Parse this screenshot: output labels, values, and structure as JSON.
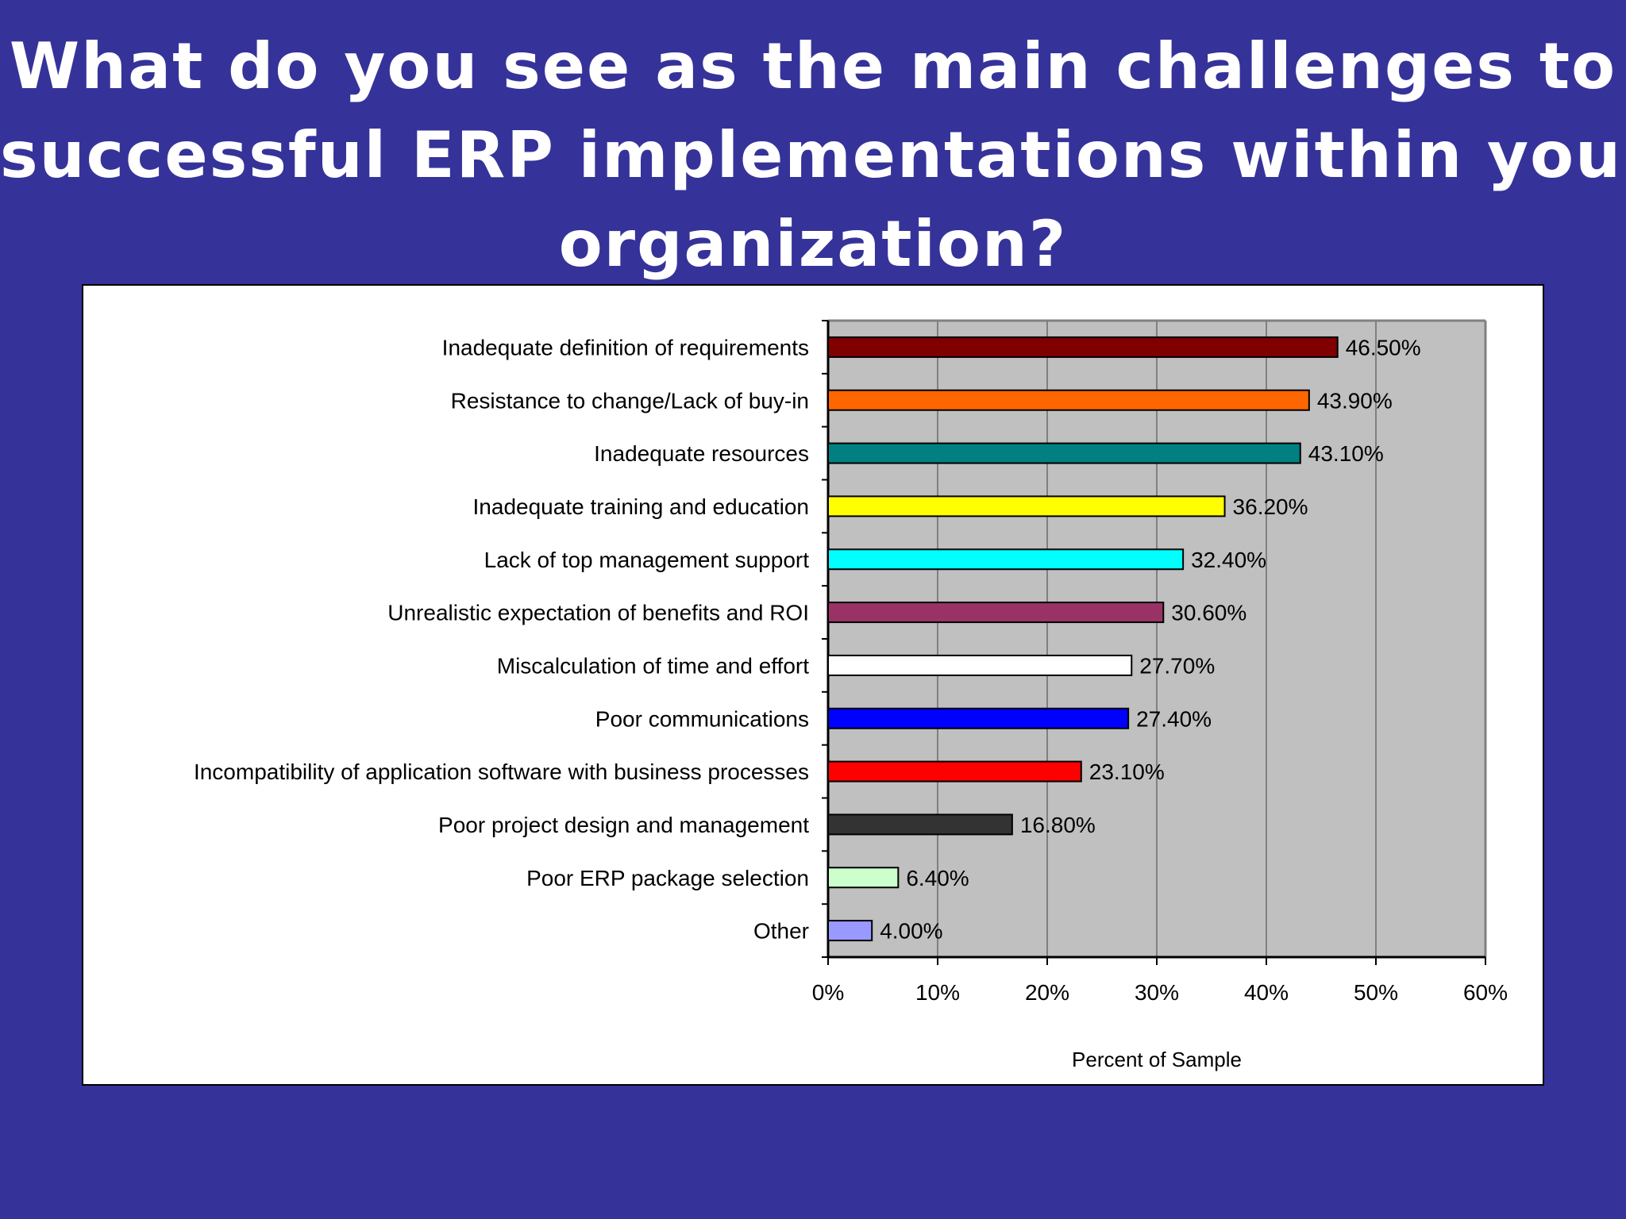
{
  "slide": {
    "title_lines": [
      "What do you see as the main challenges to",
      "successful ERP implementations within your",
      "organization?"
    ]
  },
  "chart_data": {
    "type": "bar",
    "orientation": "horizontal",
    "xlabel": "Percent of Sample",
    "xlim": [
      0,
      60
    ],
    "x_ticks": [
      0,
      10,
      20,
      30,
      40,
      50,
      60
    ],
    "x_tick_labels": [
      "0%",
      "10%",
      "20%",
      "30%",
      "40%",
      "50%",
      "60%"
    ],
    "grid": "vertical",
    "plot_background": "#c0c0c0",
    "categories": [
      "Inadequate definition of requirements",
      "Resistance to change/Lack of buy-in",
      "Inadequate resources",
      "Inadequate training and education",
      "Lack of top management support",
      "Unrealistic expectation of benefits and ROI",
      "Miscalculation of time and effort",
      "Poor communications",
      "Incompatibility of application software with business processes",
      "Poor project design and management",
      "Poor ERP package selection",
      "Other"
    ],
    "values": [
      46.5,
      43.9,
      43.1,
      36.2,
      32.4,
      30.6,
      27.7,
      27.4,
      23.1,
      16.8,
      6.4,
      4.0
    ],
    "value_labels": [
      "46.50%",
      "43.90%",
      "43.10%",
      "36.20%",
      "32.40%",
      "30.60%",
      "27.70%",
      "27.40%",
      "23.10%",
      "16.80%",
      "6.40%",
      "4.00%"
    ],
    "colors": [
      "#800000",
      "#ff6600",
      "#008080",
      "#ffff00",
      "#00ffff",
      "#993366",
      "#ffffff",
      "#0000ff",
      "#ff0000",
      "#333333",
      "#ccffcc",
      "#9999ff"
    ]
  }
}
